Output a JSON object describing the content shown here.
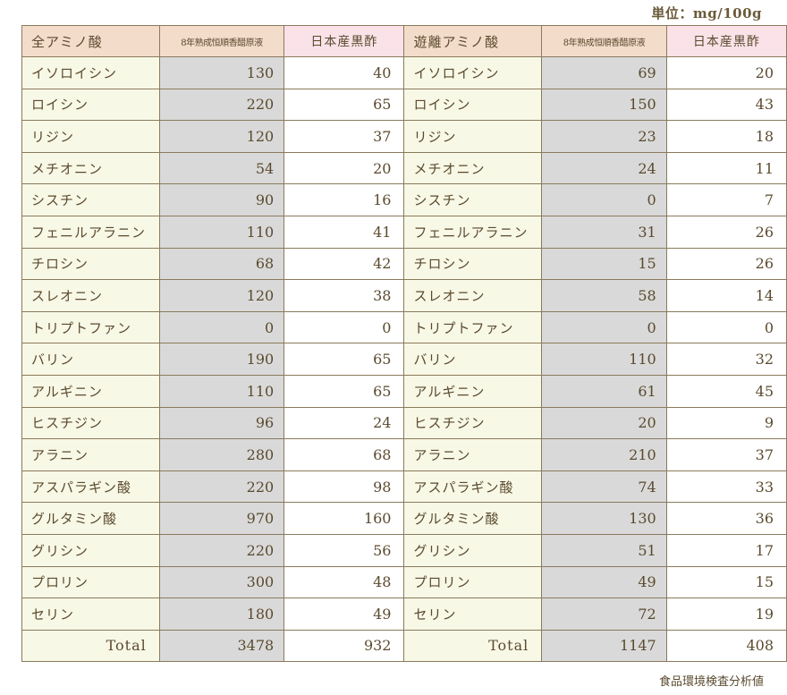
{
  "unit_label": "単位：mg/100g",
  "source_label": "食品環境検査分析値",
  "headers": {
    "left_group": "全アミノ酸",
    "right_group": "遊離アミノ酸",
    "col_a": "8年熟成恒順香醋原液",
    "col_b": "日本産黒酢"
  },
  "rows": [
    {
      "name": "イソロイシン",
      "ta": "130",
      "tb": "40",
      "fa": "69",
      "fb": "20"
    },
    {
      "name": "ロイシン",
      "ta": "220",
      "tb": "65",
      "fa": "150",
      "fb": "43"
    },
    {
      "name": "リジン",
      "ta": "120",
      "tb": "37",
      "fa": "23",
      "fb": "18"
    },
    {
      "name": "メチオニン",
      "ta": "54",
      "tb": "20",
      "fa": "24",
      "fb": "11"
    },
    {
      "name": "シスチン",
      "ta": "90",
      "tb": "16",
      "fa": "0",
      "fb": "7"
    },
    {
      "name": "フェニルアラニン",
      "ta": "110",
      "tb": "41",
      "fa": "31",
      "fb": "26"
    },
    {
      "name": "チロシン",
      "ta": "68",
      "tb": "42",
      "fa": "15",
      "fb": "26"
    },
    {
      "name": "スレオニン",
      "ta": "120",
      "tb": "38",
      "fa": "58",
      "fb": "14"
    },
    {
      "name": "トリプトファン",
      "ta": "0",
      "tb": "0",
      "fa": "0",
      "fb": "0"
    },
    {
      "name": "バリン",
      "ta": "190",
      "tb": "65",
      "fa": "110",
      "fb": "32"
    },
    {
      "name": "アルギニン",
      "ta": "110",
      "tb": "65",
      "fa": "61",
      "fb": "45"
    },
    {
      "name": "ヒスチジン",
      "ta": "96",
      "tb": "24",
      "fa": "20",
      "fb": "9"
    },
    {
      "name": "アラニン",
      "ta": "280",
      "tb": "68",
      "fa": "210",
      "fb": "37"
    },
    {
      "name": "アスパラギン酸",
      "ta": "220",
      "tb": "98",
      "fa": "74",
      "fb": "33"
    },
    {
      "name": "グルタミン酸",
      "ta": "970",
      "tb": "160",
      "fa": "130",
      "fb": "36"
    },
    {
      "name": "グリシン",
      "ta": "220",
      "tb": "56",
      "fa": "51",
      "fb": "17"
    },
    {
      "name": "プロリン",
      "ta": "300",
      "tb": "48",
      "fa": "49",
      "fb": "15"
    },
    {
      "name": "セリン",
      "ta": "180",
      "tb": "49",
      "fa": "72",
      "fb": "19"
    }
  ],
  "totals": {
    "label": "Total",
    "ta": "3478",
    "tb": "932",
    "fa": "1147",
    "fb": "408"
  }
}
